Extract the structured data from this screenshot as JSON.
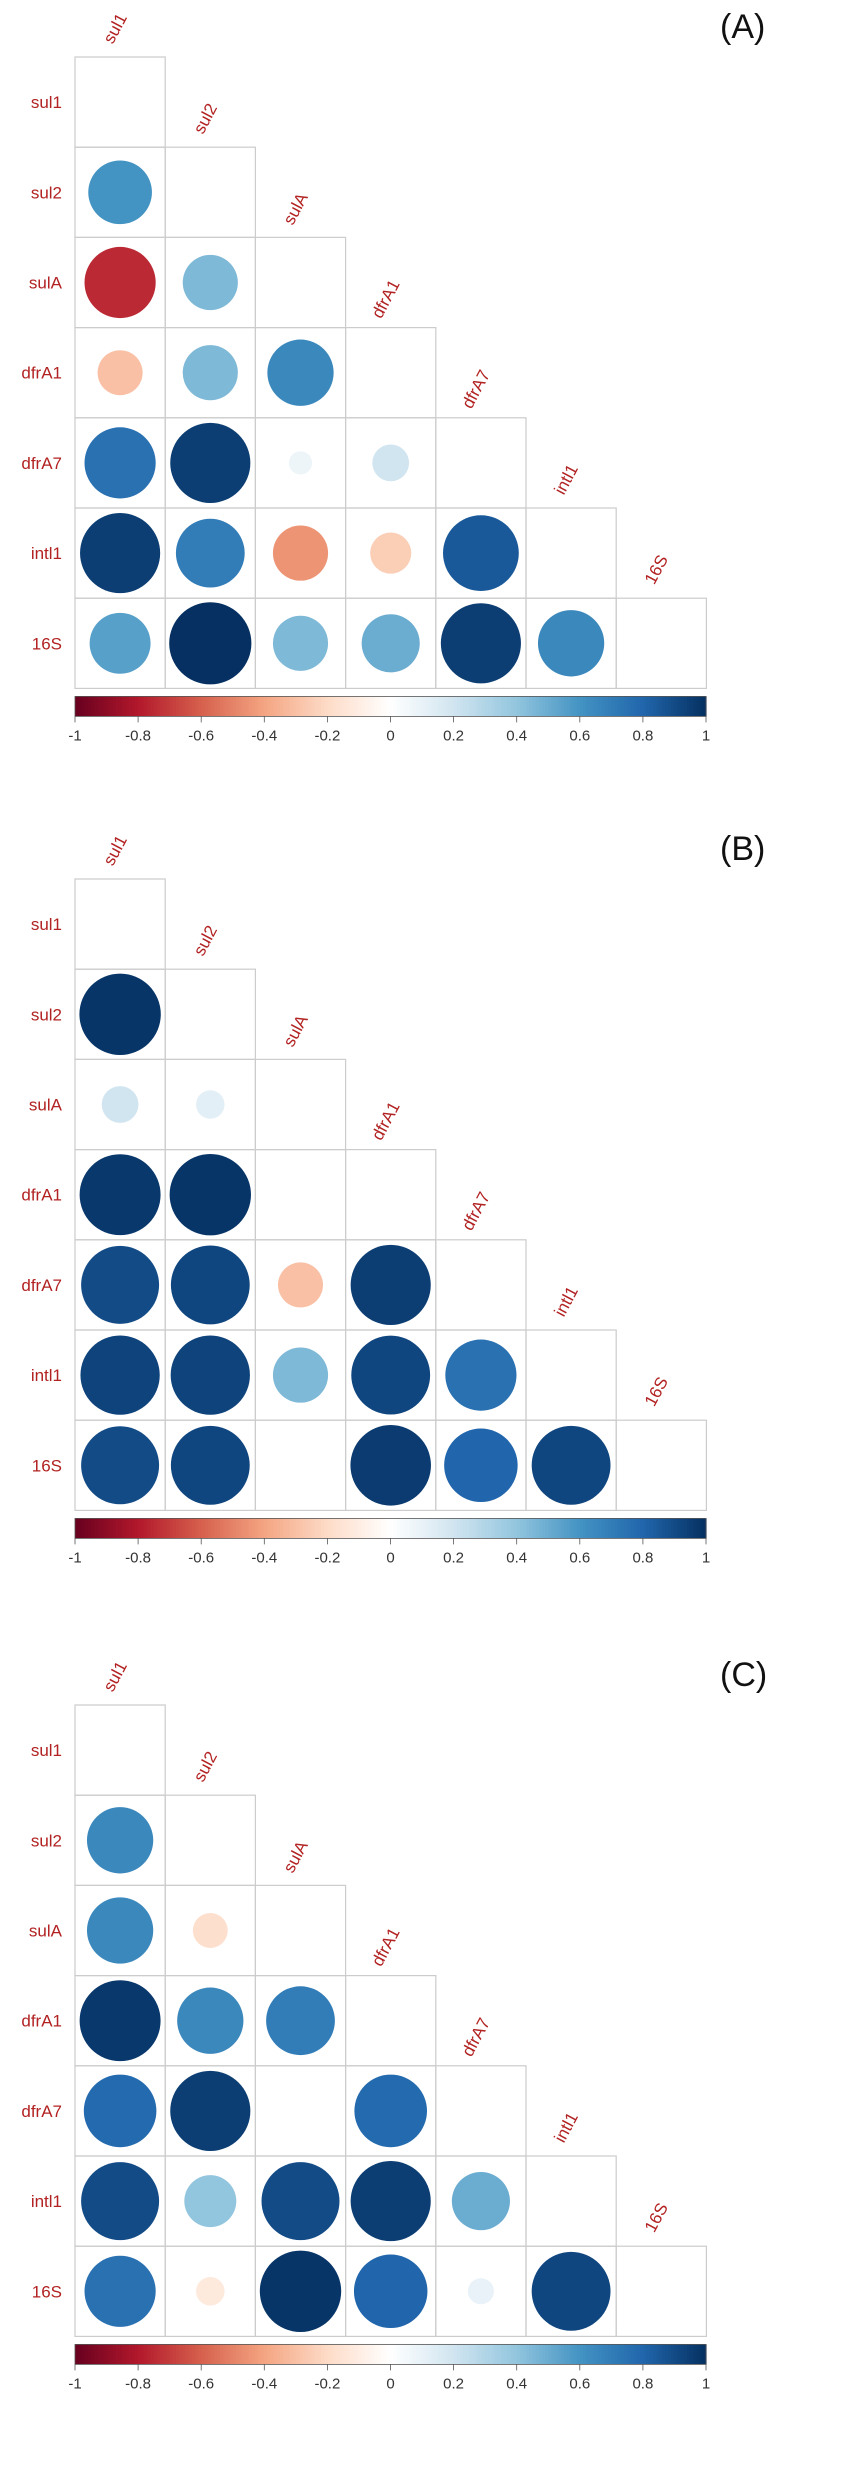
{
  "colors": {
    "label_text": "#b22222",
    "grid_line": "#cccccc",
    "scale": [
      "#67001f",
      "#b2182b",
      "#d6604d",
      "#f4a582",
      "#fddbc7",
      "#ffffff",
      "#d1e5f0",
      "#92c5de",
      "#4393c3",
      "#2166ac",
      "#053061"
    ]
  },
  "chart_data": [
    {
      "type": "heatmap",
      "panel_label": "(A)",
      "variables": [
        "sul1",
        "sul2",
        "sulA",
        "dfrA1",
        "dfrA7",
        "intI1",
        "16S"
      ],
      "row_labels": [
        "sul1",
        "sul2",
        "sulA",
        "dfrA1",
        "dfrA7",
        "intl1",
        "16S"
      ],
      "col_labels": [
        "sul1",
        "sul2",
        "sulA",
        "dfrA1",
        "dfrA7",
        "intl1",
        "16S"
      ],
      "lower_triangle": [
        [],
        [
          0.6
        ],
        [
          -0.75,
          0.45
        ],
        [
          -0.3,
          0.45,
          0.65
        ],
        [
          0.75,
          0.95,
          0.08,
          0.2
        ],
        [
          0.95,
          0.7,
          -0.45,
          -0.25,
          0.85
        ],
        [
          0.55,
          1.0,
          0.45,
          0.5,
          0.95,
          0.65
        ]
      ],
      "colorbar": {
        "ticks": [
          -1,
          -0.8,
          -0.6,
          -0.4,
          -0.2,
          0,
          0.2,
          0.4,
          0.6,
          0.8,
          1
        ],
        "range": [
          -1,
          1
        ]
      }
    },
    {
      "type": "heatmap",
      "panel_label": "(B)",
      "variables": [
        "sul1",
        "sul2",
        "sulA",
        "dfrA1",
        "dfrA7",
        "intI1",
        "16S"
      ],
      "row_labels": [
        "sul1",
        "sul2",
        "sulA",
        "dfrA1",
        "dfrA7",
        "intl1",
        "16S"
      ],
      "col_labels": [
        "sul1",
        "sul2",
        "sulA",
        "dfrA1",
        "dfrA7",
        "intl1",
        "16S"
      ],
      "lower_triangle": [
        [],
        [
          0.98
        ],
        [
          0.2,
          0.12
        ],
        [
          0.97,
          0.98,
          0.0
        ],
        [
          0.9,
          0.92,
          -0.3,
          0.95
        ],
        [
          0.93,
          0.93,
          0.45,
          0.92,
          0.75
        ],
        [
          0.9,
          0.92,
          0.0,
          0.96,
          0.8,
          0.92
        ]
      ],
      "colorbar": {
        "ticks": [
          -1,
          -0.8,
          -0.6,
          -0.4,
          -0.2,
          0,
          0.2,
          0.4,
          0.6,
          0.8,
          1
        ],
        "range": [
          -1,
          1
        ]
      }
    },
    {
      "type": "heatmap",
      "panel_label": "(C)",
      "variables": [
        "sul1",
        "sul2",
        "sulA",
        "dfrA1",
        "dfrA7",
        "intI1",
        "16S"
      ],
      "row_labels": [
        "sul1",
        "sul2",
        "sulA",
        "dfrA1",
        "dfrA7",
        "intl1",
        "16S"
      ],
      "col_labels": [
        "sul1",
        "sul2",
        "sulA",
        "dfrA1",
        "dfrA7",
        "intl1",
        "16S"
      ],
      "lower_triangle": [
        [],
        [
          0.65
        ],
        [
          0.65,
          -0.18
        ],
        [
          0.97,
          0.65,
          0.7
        ],
        [
          0.78,
          0.95,
          0.0,
          0.78
        ],
        [
          0.9,
          0.4,
          0.9,
          0.95,
          0.5
        ],
        [
          0.75,
          -0.12,
          0.98,
          0.8,
          0.1,
          0.92
        ]
      ],
      "colorbar": {
        "ticks": [
          -1,
          -0.8,
          -0.6,
          -0.4,
          -0.2,
          0,
          0.2,
          0.4,
          0.6,
          0.8,
          1
        ],
        "range": [
          -1,
          1
        ]
      }
    }
  ]
}
